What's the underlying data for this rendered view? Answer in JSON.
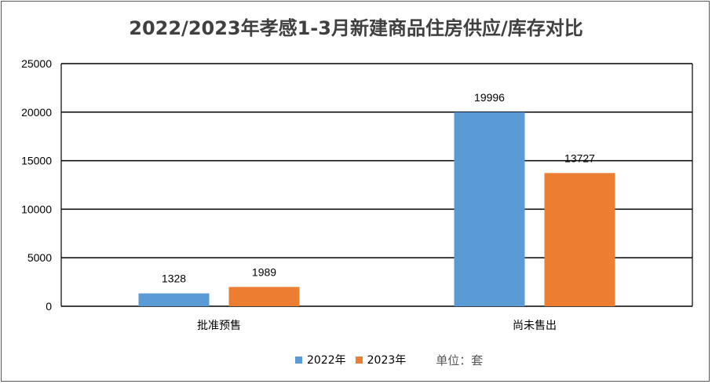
{
  "chart_data": {
    "type": "bar",
    "title": "2022/2023年孝感1-3月新建商品住房供应/库存对比",
    "categories": [
      "批准预售",
      "尚未售出"
    ],
    "series": [
      {
        "name": "2022年",
        "values": [
          1328,
          19996
        ],
        "color": "#5B9BD5"
      },
      {
        "name": "2023年",
        "values": [
          1989,
          13727
        ],
        "color": "#ED7D31"
      }
    ],
    "ylim": [
      0,
      25000
    ],
    "yticks": [
      0,
      5000,
      10000,
      15000,
      20000,
      25000
    ],
    "grid": true,
    "legend": "bottom",
    "unit_label": "单位：套"
  }
}
